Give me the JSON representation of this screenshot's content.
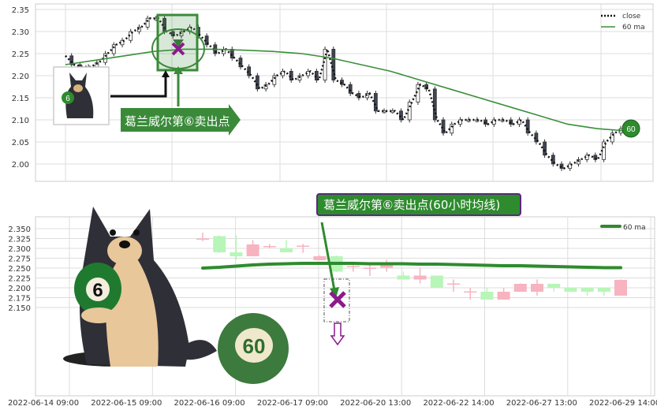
{
  "chart_data": [
    {
      "type": "candlestick",
      "title": "",
      "ylim": [
        1.98,
        2.355
      ],
      "yticks": [
        "2.35",
        "2.30",
        "2.25",
        "2.20",
        "2.15",
        "2.10",
        "2.05",
        "2.00"
      ],
      "grid": true,
      "legend": {
        "placement": "top-right",
        "entries": [
          "close",
          "60 ma"
        ]
      },
      "close": [
        2.245,
        2.225,
        2.22,
        2.22,
        2.23,
        2.25,
        2.27,
        2.28,
        2.3,
        2.31,
        2.33,
        2.33,
        2.3,
        2.29,
        2.3,
        2.31,
        2.29,
        2.27,
        2.25,
        2.26,
        2.24,
        2.22,
        2.2,
        2.17,
        2.18,
        2.2,
        2.21,
        2.19,
        2.2,
        2.21,
        2.19,
        2.26,
        2.19,
        2.18,
        2.16,
        2.15,
        2.16,
        2.12,
        2.12,
        2.12,
        2.1,
        2.14,
        2.18,
        2.17,
        2.1,
        2.07,
        2.09,
        2.1,
        2.1,
        2.1,
        2.09,
        2.1,
        2.1,
        2.09,
        2.1,
        2.07,
        2.05,
        2.02,
        2.0,
        1.99,
        2.0,
        2.01,
        2.02,
        2.01,
        2.05,
        2.07,
        2.08
      ],
      "ma60": [
        2.225,
        2.235,
        2.245,
        2.255,
        2.26,
        2.26,
        2.258,
        2.255,
        2.25,
        2.24,
        2.225,
        2.21,
        2.19,
        2.17,
        2.15,
        2.13,
        2.11,
        2.09,
        2.08,
        2.075
      ],
      "ma60_color": "#3a8f3a",
      "end_badge": "60",
      "annotation": "葛兰威尔第⑥卖出点",
      "annotation_color": "#3a8a3a",
      "marker_color": "#8b1a8b"
    },
    {
      "type": "candlestick",
      "title": "",
      "ylim": [
        2.145,
        2.365
      ],
      "yticks": [
        "2.350",
        "2.325",
        "2.300",
        "2.275",
        "2.250",
        "2.225",
        "2.200",
        "2.175",
        "2.150"
      ],
      "xticks": [
        "2022-06-14 09:00",
        "2022-06-15 09:00",
        "2022-06-16 09:00",
        "2022-06-17 09:00",
        "2022-06-20 13:00",
        "2022-06-22 14:00",
        "2022-06-27 13:00",
        "2022-06-29 14:00"
      ],
      "grid": true,
      "legend": {
        "placement": "top-right",
        "entries": [
          "60 ma"
        ]
      },
      "candles": [
        {
          "o": 2.322,
          "c": 2.325,
          "h": 2.34,
          "l": 2.318
        },
        {
          "o": 2.331,
          "c": 2.29,
          "h": 2.333,
          "l": 2.288
        },
        {
          "o": 2.29,
          "c": 2.28,
          "h": 2.333,
          "l": 2.271
        },
        {
          "o": 2.28,
          "c": 2.31,
          "h": 2.321,
          "l": 2.28
        },
        {
          "o": 2.304,
          "c": 2.306,
          "h": 2.311,
          "l": 2.3
        },
        {
          "o": 2.3,
          "c": 2.29,
          "h": 2.321,
          "l": 2.29
        },
        {
          "o": 2.305,
          "c": 2.307,
          "h": 2.311,
          "l": 2.289
        },
        {
          "o": 2.27,
          "c": 2.28,
          "h": 2.282,
          "l": 2.27
        },
        {
          "o": 2.28,
          "c": 2.241,
          "h": 2.282,
          "l": 2.24
        },
        {
          "o": 2.255,
          "c": 2.256,
          "h": 2.262,
          "l": 2.241
        },
        {
          "o": 2.25,
          "c": 2.251,
          "h": 2.258,
          "l": 2.23
        },
        {
          "o": 2.251,
          "c": 2.261,
          "h": 2.271,
          "l": 2.241
        },
        {
          "o": 2.231,
          "c": 2.221,
          "h": 2.241,
          "l": 2.221
        },
        {
          "o": 2.221,
          "c": 2.231,
          "h": 2.251,
          "l": 2.211
        },
        {
          "o": 2.231,
          "c": 2.2,
          "h": 2.231,
          "l": 2.2
        },
        {
          "o": 2.21,
          "c": 2.211,
          "h": 2.221,
          "l": 2.19
        },
        {
          "o": 2.19,
          "c": 2.191,
          "h": 2.2,
          "l": 2.17
        },
        {
          "o": 2.19,
          "c": 2.17,
          "h": 2.2,
          "l": 2.17
        },
        {
          "o": 2.17,
          "c": 2.19,
          "h": 2.2,
          "l": 2.17
        },
        {
          "o": 2.19,
          "c": 2.21,
          "h": 2.211,
          "l": 2.19
        },
        {
          "o": 2.19,
          "c": 2.21,
          "h": 2.221,
          "l": 2.18
        },
        {
          "o": 2.21,
          "c": 2.2,
          "h": 2.21,
          "l": 2.19
        },
        {
          "o": 2.2,
          "c": 2.19,
          "h": 2.2,
          "l": 2.19
        },
        {
          "o": 2.2,
          "c": 2.19,
          "h": 2.2,
          "l": 2.18
        },
        {
          "o": 2.2,
          "c": 2.19,
          "h": 2.2,
          "l": 2.18
        },
        {
          "o": 2.18,
          "c": 2.22,
          "h": 2.221,
          "l": 2.18
        }
      ],
      "ma60": [
        2.25,
        2.252,
        2.255,
        2.258,
        2.26,
        2.261,
        2.262,
        2.262,
        2.262,
        2.262,
        2.261,
        2.261,
        2.261,
        2.26,
        2.26,
        2.259,
        2.258,
        2.257,
        2.256,
        2.256,
        2.255,
        2.254,
        2.253,
        2.252,
        2.251,
        2.251
      ],
      "up_color": "#f7b3bf",
      "down_color": "#b8f5b8",
      "ma60_color": "#2e8b2e",
      "annotation": "葛兰威尔第⑥卖出点(60小时均线)",
      "ball_label": "60",
      "ball_small_label": "6"
    }
  ]
}
